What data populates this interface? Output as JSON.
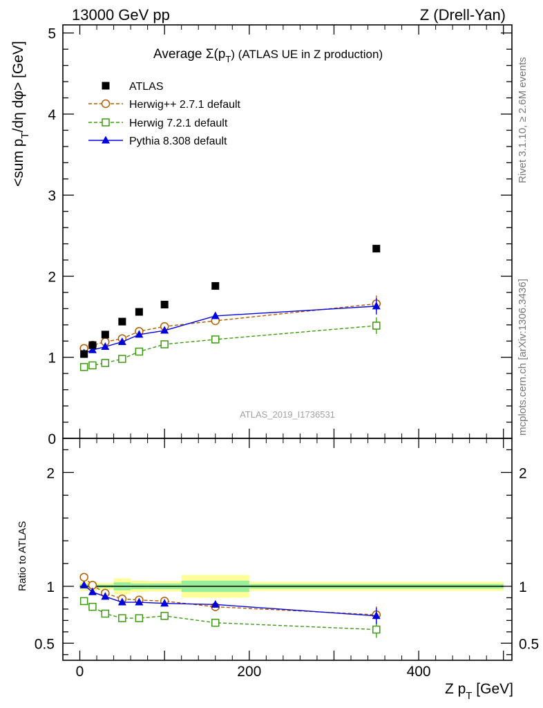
{
  "header": {
    "left": "13000 GeV pp",
    "right": "Z (Drell-Yan)"
  },
  "side_text": {
    "rivet": "Rivet 3.1.10, ≥ 2.6M events",
    "mcplots": "mcplots.cern.ch [arXiv:1306.3436]"
  },
  "watermark": "ATLAS_2019_I1736531",
  "chart_data": [
    {
      "type": "line",
      "title": "Average Σ(p_T) (ATLAS UE in Z production)",
      "title_parts": {
        "prefix": "Average ",
        "sym": "Σ(p",
        "sub": "T",
        "suffix": ") (ATLAS UE in Z production)"
      },
      "ylabel": "<sum p_T/dη dφ> [GeV]",
      "ylabel_parts": {
        "a": "<sum p",
        "sub": "T",
        "b": "/dη dφ> [GeV]"
      },
      "xlim": [
        -20,
        510
      ],
      "ylim": [
        0,
        5.1
      ],
      "yticks": [
        0,
        1,
        2,
        3,
        4,
        5
      ],
      "ytick_labels": [
        "0",
        "1",
        "2",
        "3",
        "4",
        "5"
      ],
      "x": [
        5,
        15,
        30,
        50,
        70,
        100,
        160,
        350
      ],
      "series": [
        {
          "name": "ATLAS",
          "values": [
            1.04,
            1.15,
            1.28,
            1.44,
            1.56,
            1.65,
            1.88,
            2.34
          ],
          "color": "#000000",
          "marker": "square-filled"
        },
        {
          "name": "Herwig++ 2.7.1 default",
          "values": [
            1.11,
            1.15,
            1.19,
            1.23,
            1.32,
            1.38,
            1.45,
            1.66
          ],
          "color": "#b35900",
          "marker": "circle-open",
          "dash": "dashed"
        },
        {
          "name": "Herwig 7.2.1 default",
          "values": [
            0.88,
            0.9,
            0.93,
            0.98,
            1.07,
            1.16,
            1.22,
            1.39
          ],
          "color": "#3a9a0d",
          "marker": "square-open",
          "dash": "dashed"
        },
        {
          "name": "Pythia 8.308 default",
          "values": [
            1.05,
            1.09,
            1.13,
            1.19,
            1.28,
            1.33,
            1.51,
            1.63
          ],
          "color": "#0000dd",
          "marker": "triangle-filled",
          "dash": "solid"
        }
      ],
      "legend_position": "top-left"
    },
    {
      "type": "line",
      "title": "",
      "ylabel": "Ratio to ATLAS",
      "xlabel": "Z p_T [GeV]",
      "xlabel_parts": {
        "a": "Z p",
        "sub": "T",
        "b": " [GeV]"
      },
      "xlim": [
        -20,
        510
      ],
      "ylim": [
        0.35,
        2.3
      ],
      "yticks": [
        0.5,
        1,
        2
      ],
      "ytick_labels": [
        "0.5",
        "1",
        "2"
      ],
      "xticks": [
        0,
        200,
        400
      ],
      "xtick_labels": [
        "0",
        "200",
        "400"
      ],
      "x": [
        5,
        15,
        30,
        50,
        70,
        100,
        160,
        350
      ],
      "uncertainty_bands": [
        {
          "x0": 0,
          "x1": 20,
          "yellow": [
            0.96,
            1.04
          ],
          "green": [
            0.98,
            1.02
          ]
        },
        {
          "x0": 20,
          "x1": 40,
          "yellow": [
            0.97,
            1.03
          ],
          "green": [
            0.985,
            1.015
          ]
        },
        {
          "x0": 40,
          "x1": 60,
          "yellow": [
            0.93,
            1.07
          ],
          "green": [
            0.965,
            1.035
          ]
        },
        {
          "x0": 60,
          "x1": 80,
          "yellow": [
            0.95,
            1.05
          ],
          "green": [
            0.975,
            1.025
          ]
        },
        {
          "x0": 80,
          "x1": 120,
          "yellow": [
            0.955,
            1.045
          ],
          "green": [
            0.975,
            1.025
          ]
        },
        {
          "x0": 120,
          "x1": 200,
          "yellow": [
            0.9,
            1.1
          ],
          "green": [
            0.95,
            1.05
          ]
        },
        {
          "x0": 200,
          "x1": 500,
          "yellow": [
            0.96,
            1.04
          ],
          "green": [
            0.98,
            1.02
          ]
        }
      ],
      "series": [
        {
          "name": "Herwig++ 2.7.1 default",
          "values": [
            1.08,
            1.01,
            0.94,
            0.89,
            0.88,
            0.87,
            0.82,
            0.75
          ],
          "color": "#b35900",
          "marker": "circle-open",
          "dash": "dashed"
        },
        {
          "name": "Herwig 7.2.1 default",
          "values": [
            0.87,
            0.82,
            0.76,
            0.72,
            0.72,
            0.74,
            0.68,
            0.62
          ],
          "color": "#3a9a0d",
          "marker": "square-open",
          "dash": "dashed"
        },
        {
          "name": "Pythia 8.308 default",
          "values": [
            1.01,
            0.95,
            0.91,
            0.86,
            0.86,
            0.85,
            0.84,
            0.74
          ],
          "color": "#0000dd",
          "marker": "triangle-filled",
          "dash": "solid"
        }
      ]
    }
  ]
}
